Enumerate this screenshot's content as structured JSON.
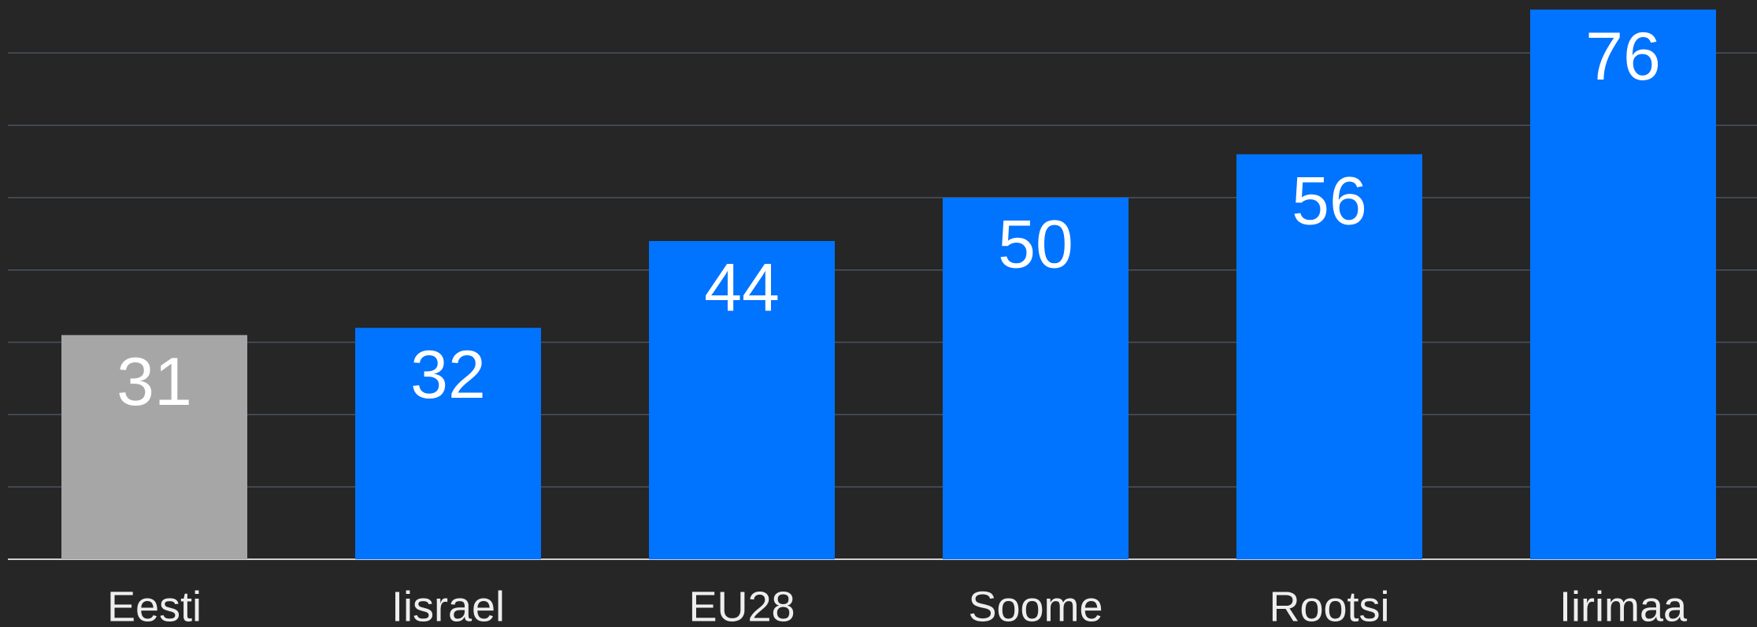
{
  "chart_data": {
    "type": "bar",
    "categories": [
      "Eesti",
      "Iisrael",
      "EU28",
      "Soome",
      "Rootsi",
      "Iirimaa"
    ],
    "values": [
      31,
      32,
      44,
      50,
      56,
      76
    ],
    "colors": [
      "#a6a6a6",
      "#0073ff",
      "#0073ff",
      "#0073ff",
      "#0073ff",
      "#0073ff"
    ],
    "ylim": [
      0,
      77
    ],
    "yticks": [
      0,
      10,
      20,
      30,
      40,
      50,
      60,
      70
    ],
    "grid": true
  }
}
